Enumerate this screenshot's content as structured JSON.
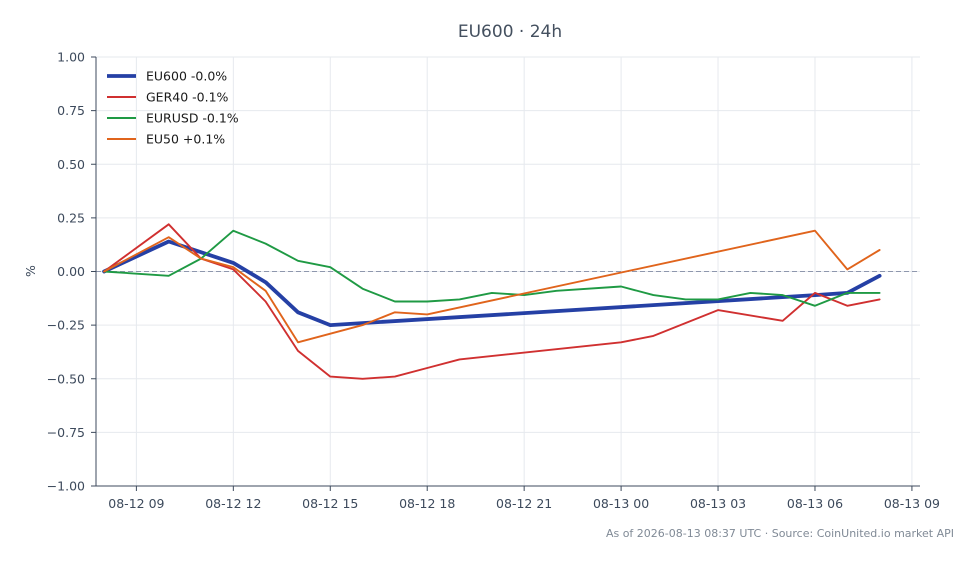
{
  "chart_data": {
    "type": "line",
    "title": "EU600 · 24h",
    "ylabel": "%",
    "xlabel": "",
    "ylim": [
      -1.0,
      1.0
    ],
    "xlim": [
      "2026-08-12 07:45",
      "2026-08-13 09:15"
    ],
    "grid": true,
    "legend_position": "top-left",
    "y_ticks": [
      "1.00",
      "0.75",
      "0.50",
      "0.25",
      "0.00",
      "−0.25",
      "−0.50",
      "−0.75",
      "−1.00"
    ],
    "x_ticks": [
      {
        "label": "08-12 09",
        "t": "2026-08-12 09:00"
      },
      {
        "label": "08-12 12",
        "t": "2026-08-12 12:00"
      },
      {
        "label": "08-12 15",
        "t": "2026-08-12 15:00"
      },
      {
        "label": "08-12 18",
        "t": "2026-08-12 18:00"
      },
      {
        "label": "08-12 21",
        "t": "2026-08-12 21:00"
      },
      {
        "label": "08-13 00",
        "t": "2026-08-13 00:00"
      },
      {
        "label": "08-13 03",
        "t": "2026-08-13 03:00"
      },
      {
        "label": "08-13 06",
        "t": "2026-08-13 06:00"
      },
      {
        "label": "08-13 09",
        "t": "2026-08-13 09:00"
      }
    ],
    "zero_line": true,
    "series": [
      {
        "name": "EU600 -0.0%",
        "color": "#2540a5",
        "points": [
          {
            "t": "2026-08-12 08:00",
            "y": 0.0
          },
          {
            "t": "2026-08-12 10:00",
            "y": 0.14
          },
          {
            "t": "2026-08-12 12:00",
            "y": 0.04
          },
          {
            "t": "2026-08-12 13:00",
            "y": -0.05
          },
          {
            "t": "2026-08-12 14:00",
            "y": -0.19
          },
          {
            "t": "2026-08-12 15:00",
            "y": -0.25
          },
          {
            "t": "2026-08-13 06:00",
            "y": -0.11
          },
          {
            "t": "2026-08-13 07:00",
            "y": -0.1
          },
          {
            "t": "2026-08-13 08:00",
            "y": -0.02
          }
        ]
      },
      {
        "name": "GER40 -0.1%",
        "color": "#d03030",
        "points": [
          {
            "t": "2026-08-12 08:00",
            "y": 0.0
          },
          {
            "t": "2026-08-12 10:00",
            "y": 0.22
          },
          {
            "t": "2026-08-12 11:00",
            "y": 0.06
          },
          {
            "t": "2026-08-12 12:00",
            "y": 0.01
          },
          {
            "t": "2026-08-12 13:00",
            "y": -0.14
          },
          {
            "t": "2026-08-12 14:00",
            "y": -0.37
          },
          {
            "t": "2026-08-12 15:00",
            "y": -0.49
          },
          {
            "t": "2026-08-12 16:00",
            "y": -0.5
          },
          {
            "t": "2026-08-12 17:00",
            "y": -0.49
          },
          {
            "t": "2026-08-12 18:00",
            "y": -0.45
          },
          {
            "t": "2026-08-12 19:00",
            "y": -0.41
          },
          {
            "t": "2026-08-13 00:00",
            "y": -0.33
          },
          {
            "t": "2026-08-13 01:00",
            "y": -0.3
          },
          {
            "t": "2026-08-13 02:00",
            "y": -0.24
          },
          {
            "t": "2026-08-13 03:00",
            "y": -0.18
          },
          {
            "t": "2026-08-13 05:00",
            "y": -0.23
          },
          {
            "t": "2026-08-13 06:00",
            "y": -0.1
          },
          {
            "t": "2026-08-13 07:00",
            "y": -0.16
          },
          {
            "t": "2026-08-13 08:00",
            "y": -0.13
          }
        ]
      },
      {
        "name": "EURUSD -0.1%",
        "color": "#1f9a44",
        "points": [
          {
            "t": "2026-08-12 08:00",
            "y": 0.0
          },
          {
            "t": "2026-08-12 10:00",
            "y": -0.02
          },
          {
            "t": "2026-08-12 11:00",
            "y": 0.06
          },
          {
            "t": "2026-08-12 12:00",
            "y": 0.19
          },
          {
            "t": "2026-08-12 13:00",
            "y": 0.13
          },
          {
            "t": "2026-08-12 14:00",
            "y": 0.05
          },
          {
            "t": "2026-08-12 15:00",
            "y": 0.02
          },
          {
            "t": "2026-08-12 16:00",
            "y": -0.08
          },
          {
            "t": "2026-08-12 17:00",
            "y": -0.14
          },
          {
            "t": "2026-08-12 18:00",
            "y": -0.14
          },
          {
            "t": "2026-08-12 19:00",
            "y": -0.13
          },
          {
            "t": "2026-08-12 20:00",
            "y": -0.1
          },
          {
            "t": "2026-08-12 21:00",
            "y": -0.11
          },
          {
            "t": "2026-08-12 22:00",
            "y": -0.09
          },
          {
            "t": "2026-08-13 00:00",
            "y": -0.07
          },
          {
            "t": "2026-08-13 01:00",
            "y": -0.11
          },
          {
            "t": "2026-08-13 02:00",
            "y": -0.13
          },
          {
            "t": "2026-08-13 03:00",
            "y": -0.13
          },
          {
            "t": "2026-08-13 04:00",
            "y": -0.1
          },
          {
            "t": "2026-08-13 05:00",
            "y": -0.11
          },
          {
            "t": "2026-08-13 06:00",
            "y": -0.16
          },
          {
            "t": "2026-08-13 07:00",
            "y": -0.1
          },
          {
            "t": "2026-08-13 08:00",
            "y": -0.1
          }
        ]
      },
      {
        "name": "EU50 +0.1%",
        "color": "#e0641c",
        "points": [
          {
            "t": "2026-08-12 08:00",
            "y": 0.0
          },
          {
            "t": "2026-08-12 10:00",
            "y": 0.16
          },
          {
            "t": "2026-08-12 11:00",
            "y": 0.06
          },
          {
            "t": "2026-08-12 12:00",
            "y": 0.02
          },
          {
            "t": "2026-08-12 13:00",
            "y": -0.09
          },
          {
            "t": "2026-08-12 14:00",
            "y": -0.33
          },
          {
            "t": "2026-08-12 16:00",
            "y": -0.25
          },
          {
            "t": "2026-08-12 17:00",
            "y": -0.19
          },
          {
            "t": "2026-08-12 18:00",
            "y": -0.2
          },
          {
            "t": "2026-08-13 06:00",
            "y": 0.19
          },
          {
            "t": "2026-08-13 07:00",
            "y": 0.01
          },
          {
            "t": "2026-08-13 08:00",
            "y": 0.1
          }
        ]
      }
    ]
  },
  "footer": "As of 2026-08-13 08:37 UTC · Source: CoinUnited.io market API"
}
